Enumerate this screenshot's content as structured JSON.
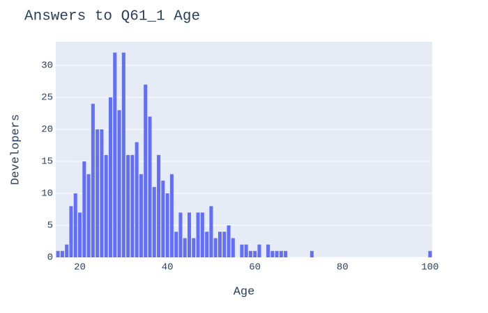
{
  "chart_data": {
    "type": "bar",
    "title": "Answers to Q61_1 Age",
    "x_label": "Age",
    "y_label": "Developers",
    "x": [
      15,
      16,
      17,
      18,
      19,
      20,
      21,
      22,
      23,
      24,
      25,
      26,
      27,
      28,
      29,
      30,
      31,
      32,
      33,
      34,
      35,
      36,
      37,
      38,
      39,
      40,
      41,
      42,
      43,
      44,
      45,
      46,
      47,
      48,
      49,
      50,
      51,
      52,
      53,
      54,
      55,
      57,
      58,
      59,
      60,
      61,
      63,
      64,
      65,
      66,
      67,
      73,
      100
    ],
    "values": [
      1,
      1,
      2,
      8,
      10,
      7,
      15,
      13,
      24,
      20,
      20,
      16,
      25,
      32,
      23,
      32,
      16,
      16,
      18,
      13,
      27,
      22,
      11,
      16,
      12,
      10,
      13,
      4,
      7,
      3,
      7,
      3,
      7,
      7,
      4,
      8,
      3,
      4,
      4,
      5,
      3,
      2,
      2,
      1,
      1,
      2,
      2,
      1,
      1,
      1,
      1,
      1,
      1
    ],
    "color": "#636efa",
    "xlim": [
      14.5,
      100.5
    ],
    "xticks": [
      20,
      40,
      60,
      80,
      100
    ],
    "ylim": [
      0,
      33.7
    ],
    "yticks": [
      0,
      5,
      10,
      15,
      20,
      25,
      30
    ],
    "grid": true
  }
}
